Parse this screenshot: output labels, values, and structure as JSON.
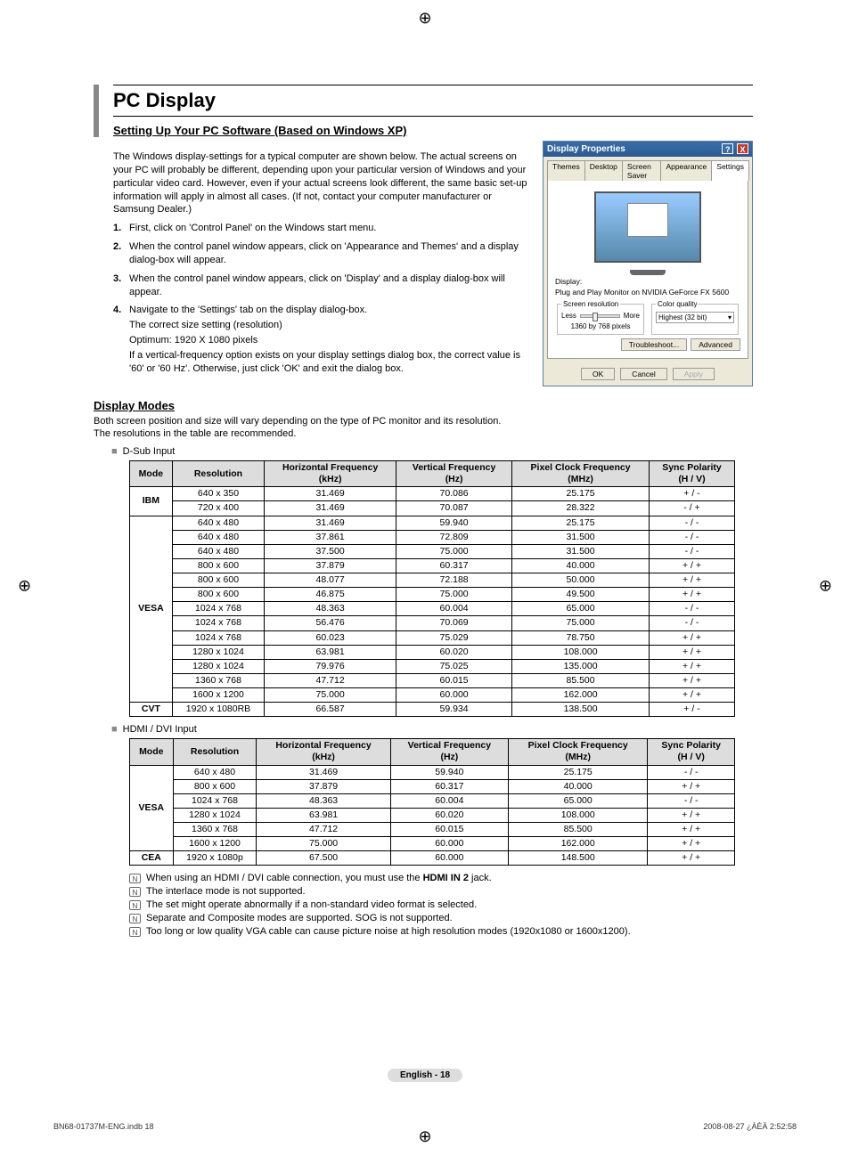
{
  "reg_mark": "⊕",
  "main_title": "PC Display",
  "section1_title": "Setting Up Your PC Software (Based on Windows XP)",
  "intro": "The Windows display-settings for a typical computer are shown below. The actual screens on your PC will probably be different, depending upon your particular version of Windows and your particular video card. However, even if your actual screens look different, the same basic set-up information will apply in almost all cases. (If not, contact your computer manufacturer or Samsung Dealer.)",
  "steps": [
    "First, click on 'Control Panel' on the Windows start menu.",
    "When the control panel window appears, click on 'Appearance and Themes' and a display dialog-box will appear.",
    "When the control panel window appears, click on 'Display' and a display dialog-box will appear.",
    "Navigate to the 'Settings' tab on the display dialog-box."
  ],
  "step4_lines": [
    "The correct size setting (resolution)",
    "Optimum: 1920 X 1080 pixels",
    "If a vertical-frequency option exists on your display settings dialog box, the correct value is '60' or '60 Hz'. Otherwise, just click 'OK' and exit the dialog box."
  ],
  "dialog": {
    "title": "Display Properties",
    "tabs": [
      "Themes",
      "Desktop",
      "Screen Saver",
      "Appearance",
      "Settings"
    ],
    "display_label": "Display:",
    "display_value": "Plug and Play Monitor on NVIDIA GeForce FX 5600",
    "res_legend": "Screen resolution",
    "res_less": "Less",
    "res_more": "More",
    "res_value": "1360 by 768 pixels",
    "quality_legend": "Color quality",
    "quality_value": "Highest (32 bit)",
    "btn_troubleshoot": "Troubleshoot...",
    "btn_advanced": "Advanced",
    "btn_ok": "OK",
    "btn_cancel": "Cancel",
    "btn_apply": "Apply"
  },
  "section2_title": "Display Modes",
  "section2_l1": "Both screen position and size will vary depending on the type of PC monitor and its resolution.",
  "section2_l2": "The resolutions in the table are recommended.",
  "dsub_label": "D-Sub Input",
  "hdmi_label": "HDMI / DVI Input",
  "table_headers": [
    "Mode",
    "Resolution",
    "Horizontal Frequency (kHz)",
    "Vertical Frequency (Hz)",
    "Pixel Clock Frequency (MHz)",
    "Sync Polarity (H / V)"
  ],
  "dsub_groups": [
    {
      "mode": "IBM",
      "rows": [
        [
          "640 x 350",
          "31.469",
          "70.086",
          "25.175",
          "+ / -"
        ],
        [
          "720 x 400",
          "31.469",
          "70.087",
          "28.322",
          "- / +"
        ]
      ]
    },
    {
      "mode": "VESA",
      "rows": [
        [
          "640 x 480",
          "31.469",
          "59.940",
          "25.175",
          "- / -"
        ],
        [
          "640 x 480",
          "37.861",
          "72.809",
          "31.500",
          "- / -"
        ],
        [
          "640 x 480",
          "37.500",
          "75.000",
          "31.500",
          "- / -"
        ],
        [
          "800 x 600",
          "37.879",
          "60.317",
          "40.000",
          "+ / +"
        ],
        [
          "800 x 600",
          "48.077",
          "72.188",
          "50.000",
          "+ / +"
        ],
        [
          "800 x 600",
          "46.875",
          "75.000",
          "49.500",
          "+ / +"
        ],
        [
          "1024 x 768",
          "48.363",
          "60.004",
          "65.000",
          "- / -"
        ],
        [
          "1024 x 768",
          "56.476",
          "70.069",
          "75.000",
          "- / -"
        ],
        [
          "1024 x 768",
          "60.023",
          "75.029",
          "78.750",
          "+ / +"
        ],
        [
          "1280 x 1024",
          "63.981",
          "60.020",
          "108.000",
          "+ / +"
        ],
        [
          "1280 x 1024",
          "79.976",
          "75.025",
          "135.000",
          "+ / +"
        ],
        [
          "1360 x 768",
          "47.712",
          "60.015",
          "85.500",
          "+ / +"
        ],
        [
          "1600 x 1200",
          "75.000",
          "60.000",
          "162.000",
          "+ / +"
        ]
      ]
    },
    {
      "mode": "CVT",
      "rows": [
        [
          "1920 x 1080RB",
          "66.587",
          "59.934",
          "138.500",
          "+ / -"
        ]
      ]
    }
  ],
  "hdmi_groups": [
    {
      "mode": "VESA",
      "rows": [
        [
          "640 x 480",
          "31.469",
          "59.940",
          "25.175",
          "- / -"
        ],
        [
          "800 x 600",
          "37.879",
          "60.317",
          "40.000",
          "+ / +"
        ],
        [
          "1024 x 768",
          "48.363",
          "60.004",
          "65.000",
          "- / -"
        ],
        [
          "1280 x 1024",
          "63.981",
          "60.020",
          "108.000",
          "+ / +"
        ],
        [
          "1360 x 768",
          "47.712",
          "60.015",
          "85.500",
          "+ / +"
        ],
        [
          "1600 x 1200",
          "75.000",
          "60.000",
          "162.000",
          "+ / +"
        ]
      ]
    },
    {
      "mode": "CEA",
      "rows": [
        [
          "1920 x 1080p",
          "67.500",
          "60.000",
          "148.500",
          "+ / +"
        ]
      ]
    }
  ],
  "notes": [
    "When using an HDMI / DVI cable connection, you must use the HDMI IN 2 jack.",
    "The interlace mode is not supported.",
    "The set might operate abnormally if a non-standard video format is selected.",
    "Separate and Composite modes are supported. SOG is not supported.",
    "Too long or low quality VGA cable can cause picture noise at high resolution modes (1920x1080 or 1600x1200)."
  ],
  "page_footer": "English - 18",
  "print_footer_l": "BN68-01737M-ENG.indb   18",
  "print_footer_r": "2008-08-27   ¿ÀÈÄ 2:52:58"
}
